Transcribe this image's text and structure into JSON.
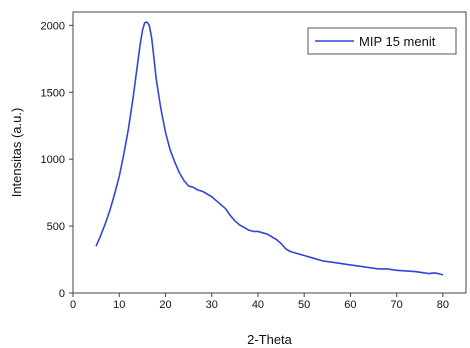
{
  "chart_data": {
    "type": "line",
    "xlabel": "2-Theta",
    "ylabel": "Intensitas (a.u.)",
    "xlim": [
      0,
      85
    ],
    "ylim": [
      0,
      2100
    ],
    "xticks": [
      0,
      10,
      20,
      30,
      40,
      50,
      60,
      70,
      80
    ],
    "yticks": [
      0,
      500,
      1000,
      1500,
      2000
    ],
    "grid": false,
    "legend_position": "top-right",
    "series": [
      {
        "name": "MIP 15 menit",
        "color": "#3344dd",
        "x": [
          5,
          6,
          7,
          8,
          9,
          10,
          11,
          12,
          13,
          14,
          14.5,
          15,
          15.5,
          16,
          16.5,
          17,
          17.5,
          18,
          19,
          20,
          21,
          22,
          23,
          24,
          25,
          26,
          27,
          28,
          29,
          30,
          31,
          32,
          33,
          34,
          35,
          36,
          37,
          38,
          39,
          40,
          41,
          42,
          43,
          44,
          45,
          46,
          47,
          48,
          50,
          52,
          54,
          56,
          58,
          60,
          62,
          64,
          66,
          68,
          70,
          72,
          74,
          76,
          77,
          78,
          79,
          80
        ],
        "y": [
          350,
          430,
          520,
          620,
          740,
          870,
          1040,
          1230,
          1460,
          1720,
          1850,
          1960,
          2020,
          2025,
          2000,
          1910,
          1760,
          1600,
          1380,
          1200,
          1070,
          980,
          900,
          840,
          800,
          790,
          770,
          760,
          740,
          720,
          690,
          660,
          630,
          580,
          540,
          510,
          490,
          470,
          460,
          460,
          450,
          440,
          420,
          400,
          370,
          330,
          310,
          300,
          280,
          260,
          240,
          230,
          220,
          210,
          200,
          190,
          180,
          180,
          170,
          165,
          160,
          150,
          145,
          150,
          145,
          135
        ]
      }
    ]
  }
}
